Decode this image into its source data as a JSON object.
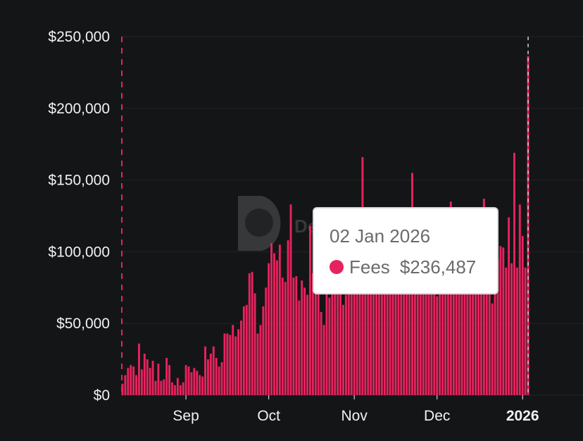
{
  "chart_data": {
    "type": "bar",
    "series": [
      {
        "name": "Fees",
        "color": "#e8225e",
        "values": [
          8000,
          14000,
          19000,
          21000,
          20000,
          14000,
          36000,
          18000,
          29000,
          25000,
          19000,
          24000,
          10000,
          22000,
          10000,
          11000,
          26000,
          21000,
          9000,
          7000,
          12000,
          7000,
          9000,
          21000,
          20000,
          16000,
          19000,
          17000,
          14000,
          13000,
          34000,
          25000,
          29000,
          34000,
          26000,
          20000,
          23000,
          43000,
          43000,
          42000,
          49000,
          41000,
          46000,
          52000,
          62000,
          63000,
          85000,
          86000,
          71000,
          43000,
          49000,
          62000,
          75000,
          92000,
          106000,
          99000,
          94000,
          105000,
          82000,
          79000,
          108000,
          133000,
          82000,
          83000,
          66000,
          80000,
          75000,
          70000,
          118000,
          85000,
          79000,
          103000,
          58000,
          49000,
          73000,
          68000,
          85000,
          79000,
          79000,
          85000,
          63000,
          70000,
          94000,
          82000,
          76000,
          88000,
          96000,
          166000,
          96000,
          87000,
          100000,
          100000,
          93000,
          102000,
          81000,
          87000,
          118000,
          80000,
          96000,
          99000,
          95000,
          98000,
          86000,
          80000,
          91000,
          155000,
          98000,
          86000,
          105000,
          84000,
          93000,
          103000,
          93000,
          95000,
          69000,
          85000,
          98000,
          91000,
          93000,
          135000,
          98000,
          84000,
          89000,
          80000,
          87000,
          96000,
          90000,
          91000,
          78000,
          104000,
          87000,
          137000,
          96000,
          88000,
          64000,
          88000,
          95000,
          104000,
          103000,
          89000,
          124000,
          92000,
          169000,
          89000,
          133000,
          111000,
          89000,
          236487
        ]
      }
    ],
    "x_range": [
      "2025-08-09",
      "2026-01-02"
    ],
    "x_ticks": [
      "Sep",
      "Oct",
      "Nov",
      "Dec",
      "2026"
    ],
    "y_ticks": [
      "$0",
      "$50,000",
      "$100,000",
      "$150,000",
      "$200,000",
      "$250,000"
    ],
    "ylim": [
      0,
      250000
    ],
    "grid": true,
    "watermark": "DefiLlama",
    "tooltip": {
      "date": "02 Jan 2026",
      "series_name": "Fees",
      "value_label": "$236,487"
    }
  }
}
